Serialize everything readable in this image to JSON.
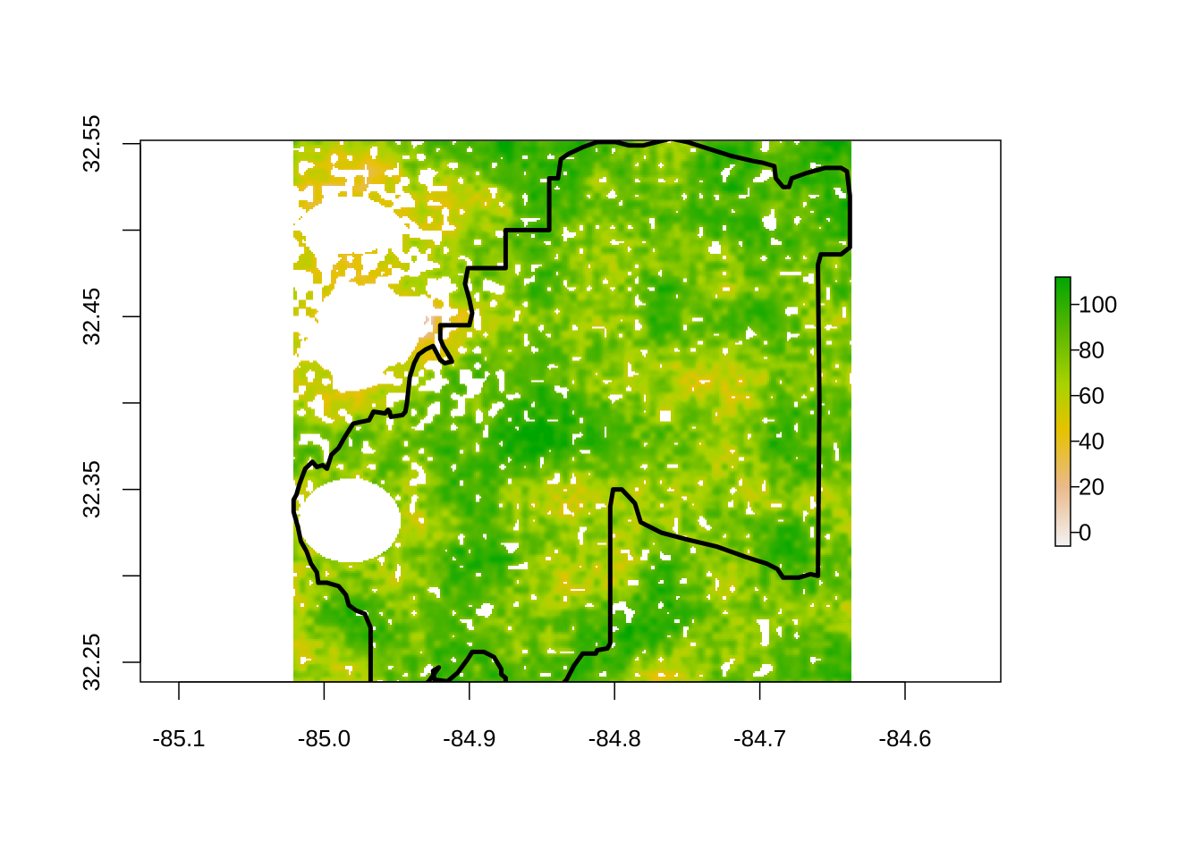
{
  "chart_data": {
    "type": "heatmap",
    "x_ticks": [
      "-85.1",
      "-85.0",
      "-84.9",
      "-84.8",
      "-84.7",
      "-84.6"
    ],
    "x_tick_values": [
      -85.1,
      -85.0,
      -84.9,
      -84.8,
      -84.7,
      -84.6
    ],
    "y_ticks": [
      "32.25",
      "32.35",
      "32.45",
      "32.55"
    ],
    "y_tick_values": [
      32.25,
      32.35,
      32.45,
      32.55
    ],
    "y_minor_tick_values": [
      32.3,
      32.4,
      32.5
    ],
    "xlim": [
      -85.12,
      -84.53
    ],
    "ylim": [
      32.227,
      32.553
    ],
    "raster_extent": {
      "x": [
        -85.021,
        -84.637
      ],
      "y": [
        32.227,
        32.553
      ]
    },
    "colorbar": {
      "ticks": [
        "0",
        "20",
        "40",
        "60",
        "80",
        "100"
      ],
      "tick_values": [
        0,
        20,
        40,
        60,
        80,
        100
      ],
      "range": [
        -6,
        112
      ],
      "colors": [
        "#F2F2F2",
        "#EAB98A",
        "#E6C200",
        "#A9D200",
        "#5AB700",
        "#00A600"
      ]
    },
    "boundary_lonlat": [
      [
        -84.761,
        32.553
      ],
      [
        -84.75,
        32.551
      ],
      [
        -84.735,
        32.547
      ],
      [
        -84.72,
        32.543
      ],
      [
        -84.705,
        32.54
      ],
      [
        -84.698,
        32.539
      ],
      [
        -84.69,
        32.537
      ],
      [
        -84.689,
        32.53
      ],
      [
        -84.684,
        32.525
      ],
      [
        -84.68,
        32.525
      ],
      [
        -84.678,
        32.53
      ],
      [
        -84.668,
        32.533
      ],
      [
        -84.655,
        32.536
      ],
      [
        -84.644,
        32.536
      ],
      [
        -84.64,
        32.534
      ],
      [
        -84.638,
        32.52
      ],
      [
        -84.638,
        32.49
      ],
      [
        -84.644,
        32.486
      ],
      [
        -84.658,
        32.486
      ],
      [
        -84.66,
        32.48
      ],
      [
        -84.659,
        32.4
      ],
      [
        -84.66,
        32.3
      ],
      [
        -84.665,
        32.301
      ],
      [
        -84.673,
        32.299
      ],
      [
        -84.684,
        32.299
      ],
      [
        -84.688,
        32.304
      ],
      [
        -84.695,
        32.307
      ],
      [
        -84.71,
        32.311
      ],
      [
        -84.73,
        32.317
      ],
      [
        -84.75,
        32.321
      ],
      [
        -84.768,
        32.325
      ],
      [
        -84.782,
        32.331
      ],
      [
        -84.786,
        32.342
      ],
      [
        -84.795,
        32.35
      ],
      [
        -84.801,
        32.35
      ],
      [
        -84.803,
        32.34
      ],
      [
        -84.803,
        32.28
      ],
      [
        -84.803,
        32.261
      ],
      [
        -84.805,
        32.258
      ],
      [
        -84.812,
        32.257
      ],
      [
        -84.813,
        32.255
      ],
      [
        -84.822,
        32.255
      ],
      [
        -84.828,
        32.248
      ],
      [
        -84.833,
        32.24
      ],
      [
        -84.845,
        32.229
      ],
      [
        -84.851,
        32.228
      ],
      [
        -84.858,
        32.228
      ],
      [
        -84.863,
        32.231
      ],
      [
        -84.87,
        32.233
      ],
      [
        -84.875,
        32.237
      ],
      [
        -84.875,
        32.241
      ],
      [
        -84.878,
        32.243
      ],
      [
        -84.878,
        32.246
      ],
      [
        -84.883,
        32.253
      ],
      [
        -84.89,
        32.256
      ],
      [
        -84.898,
        32.256
      ],
      [
        -84.901,
        32.252
      ],
      [
        -84.908,
        32.244
      ],
      [
        -84.915,
        32.239
      ],
      [
        -84.924,
        32.24
      ],
      [
        -84.925,
        32.245
      ],
      [
        -84.921,
        32.247
      ],
      [
        -84.928,
        32.239
      ],
      [
        -84.94,
        32.23
      ],
      [
        -84.952,
        32.23
      ],
      [
        -84.957,
        32.23
      ],
      [
        -84.966,
        32.232
      ],
      [
        -84.968,
        32.236
      ],
      [
        -84.968,
        32.27
      ],
      [
        -84.972,
        32.278
      ],
      [
        -84.978,
        32.28
      ],
      [
        -84.983,
        32.283
      ],
      [
        -84.985,
        32.289
      ],
      [
        -84.99,
        32.294
      ],
      [
        -84.998,
        32.296
      ],
      [
        -85.004,
        32.296
      ],
      [
        -85.005,
        32.302
      ],
      [
        -85.009,
        32.307
      ],
      [
        -85.012,
        32.314
      ],
      [
        -85.016,
        32.32
      ],
      [
        -85.018,
        32.328
      ],
      [
        -85.021,
        32.337
      ],
      [
        -85.021,
        32.344
      ],
      [
        -85.019,
        32.347
      ],
      [
        -85.017,
        32.353
      ],
      [
        -85.013,
        32.362
      ],
      [
        -85.008,
        32.366
      ],
      [
        -85.005,
        32.363
      ],
      [
        -85.001,
        32.364
      ],
      [
        -84.998,
        32.362
      ],
      [
        -84.995,
        32.37
      ],
      [
        -84.99,
        32.374
      ],
      [
        -84.986,
        32.38
      ],
      [
        -84.98,
        32.388
      ],
      [
        -84.975,
        32.389
      ],
      [
        -84.969,
        32.39
      ],
      [
        -84.966,
        32.395
      ],
      [
        -84.958,
        32.394
      ],
      [
        -84.956,
        32.396
      ],
      [
        -84.955,
        32.395
      ],
      [
        -84.954,
        32.392
      ],
      [
        -84.946,
        32.393
      ],
      [
        -84.944,
        32.395
      ],
      [
        -84.943,
        32.4
      ],
      [
        -84.941,
        32.415
      ],
      [
        -84.938,
        32.423
      ],
      [
        -84.935,
        32.428
      ],
      [
        -84.93,
        32.431
      ],
      [
        -84.925,
        32.433
      ],
      [
        -84.92,
        32.425
      ],
      [
        -84.917,
        32.423
      ],
      [
        -84.912,
        32.424
      ],
      [
        -84.913,
        32.426
      ],
      [
        -84.918,
        32.433
      ],
      [
        -84.92,
        32.437
      ],
      [
        -84.92,
        32.445
      ],
      [
        -84.9,
        32.445
      ],
      [
        -84.898,
        32.452
      ],
      [
        -84.9,
        32.46
      ],
      [
        -84.903,
        32.469
      ],
      [
        -84.901,
        32.478
      ],
      [
        -84.875,
        32.478
      ],
      [
        -84.875,
        32.5
      ],
      [
        -84.845,
        32.5
      ],
      [
        -84.845,
        32.53
      ],
      [
        -84.839,
        32.53
      ],
      [
        -84.837,
        32.541
      ],
      [
        -84.832,
        32.544
      ],
      [
        -84.822,
        32.548
      ],
      [
        -84.812,
        32.551
      ],
      [
        -84.799,
        32.551
      ],
      [
        -84.79,
        32.549
      ],
      [
        -84.78,
        32.549
      ],
      [
        -84.771,
        32.551
      ],
      [
        -84.761,
        32.553
      ]
    ]
  }
}
